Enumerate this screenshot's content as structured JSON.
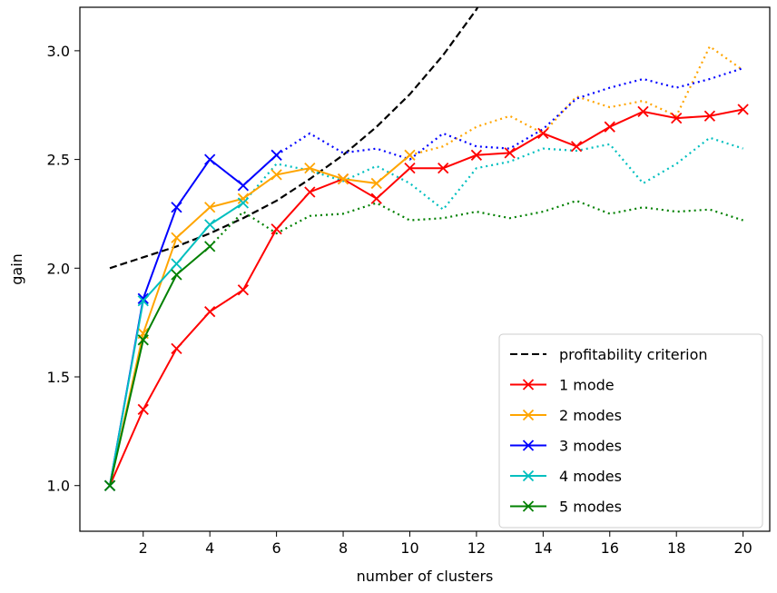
{
  "chart_data": {
    "type": "line",
    "xlabel": "number of clusters",
    "ylabel": "gain",
    "xlim": [
      0.1,
      20.8
    ],
    "ylim": [
      0.79,
      3.2
    ],
    "xticks": [
      "2",
      "4",
      "6",
      "8",
      "10",
      "12",
      "14",
      "16",
      "18",
      "20"
    ],
    "yticks": [
      "1.0",
      "1.5",
      "2.0",
      "2.5",
      "3.0"
    ],
    "grid": false,
    "legend_position": "lower-right",
    "criterion": {
      "name": "profitability criterion",
      "color": "#000000",
      "x": [
        1,
        2,
        3,
        4,
        5,
        6,
        7,
        8,
        9,
        10,
        11,
        12,
        12.1
      ],
      "y": [
        2.0,
        2.05,
        2.1,
        2.16,
        2.23,
        2.31,
        2.41,
        2.52,
        2.65,
        2.8,
        2.98,
        3.19,
        3.22
      ]
    },
    "series": [
      {
        "name": "1 mode",
        "color": "#ff0000",
        "solid_x": [
          1,
          2,
          3,
          4,
          5,
          6,
          7,
          8,
          9,
          10,
          11,
          12,
          13,
          14,
          15,
          16,
          17,
          18,
          19,
          20
        ],
        "solid_y": [
          1.0,
          1.35,
          1.63,
          1.8,
          1.9,
          2.18,
          2.35,
          2.41,
          2.32,
          2.46,
          2.46,
          2.52,
          2.53,
          2.62,
          2.56,
          2.65,
          2.72,
          2.69,
          2.7,
          2.73
        ],
        "dotted_x": [],
        "dotted_y": []
      },
      {
        "name": "2 modes",
        "color": "#ffa500",
        "solid_x": [
          1,
          2,
          3,
          4,
          5,
          6,
          7,
          8,
          9,
          10
        ],
        "solid_y": [
          1.0,
          1.7,
          2.14,
          2.28,
          2.32,
          2.43,
          2.46,
          2.41,
          2.39,
          2.52
        ],
        "dotted_x": [
          10,
          11,
          12,
          13,
          14,
          15,
          16,
          17,
          18,
          19,
          20
        ],
        "dotted_y": [
          2.52,
          2.56,
          2.65,
          2.7,
          2.62,
          2.79,
          2.74,
          2.77,
          2.7,
          3.02,
          2.91
        ]
      },
      {
        "name": "3 modes",
        "color": "#0000ff",
        "solid_x": [
          1,
          2,
          3,
          4,
          5,
          6
        ],
        "solid_y": [
          1.0,
          1.86,
          2.28,
          2.5,
          2.38,
          2.52
        ],
        "dotted_x": [
          6,
          7,
          8,
          9,
          10,
          11,
          12,
          13,
          14,
          15,
          16,
          17,
          18,
          19,
          20
        ],
        "dotted_y": [
          2.52,
          2.62,
          2.53,
          2.55,
          2.5,
          2.62,
          2.56,
          2.55,
          2.64,
          2.78,
          2.83,
          2.87,
          2.83,
          2.87,
          2.92
        ]
      },
      {
        "name": "4 modes",
        "color": "#00bfbf",
        "solid_x": [
          1,
          2,
          3,
          4,
          5
        ],
        "solid_y": [
          1.0,
          1.85,
          2.02,
          2.2,
          2.3
        ],
        "dotted_x": [
          5,
          6,
          7,
          8,
          9,
          10,
          11,
          12,
          13,
          14,
          15,
          16,
          17,
          18,
          19,
          20
        ],
        "dotted_y": [
          2.3,
          2.48,
          2.45,
          2.4,
          2.47,
          2.39,
          2.27,
          2.46,
          2.49,
          2.55,
          2.54,
          2.57,
          2.39,
          2.48,
          2.6,
          2.55
        ]
      },
      {
        "name": "5 modes",
        "color": "#008000",
        "solid_x": [
          1,
          2,
          3,
          4
        ],
        "solid_y": [
          1.0,
          1.67,
          1.97,
          2.1
        ],
        "dotted_x": [
          4,
          5,
          6,
          7,
          8,
          9,
          10,
          11,
          12,
          13,
          14,
          15,
          16,
          17,
          18,
          19,
          20
        ],
        "dotted_y": [
          2.1,
          2.26,
          2.16,
          2.24,
          2.25,
          2.3,
          2.22,
          2.23,
          2.26,
          2.23,
          2.26,
          2.31,
          2.25,
          2.28,
          2.26,
          2.27,
          2.22
        ]
      }
    ]
  }
}
